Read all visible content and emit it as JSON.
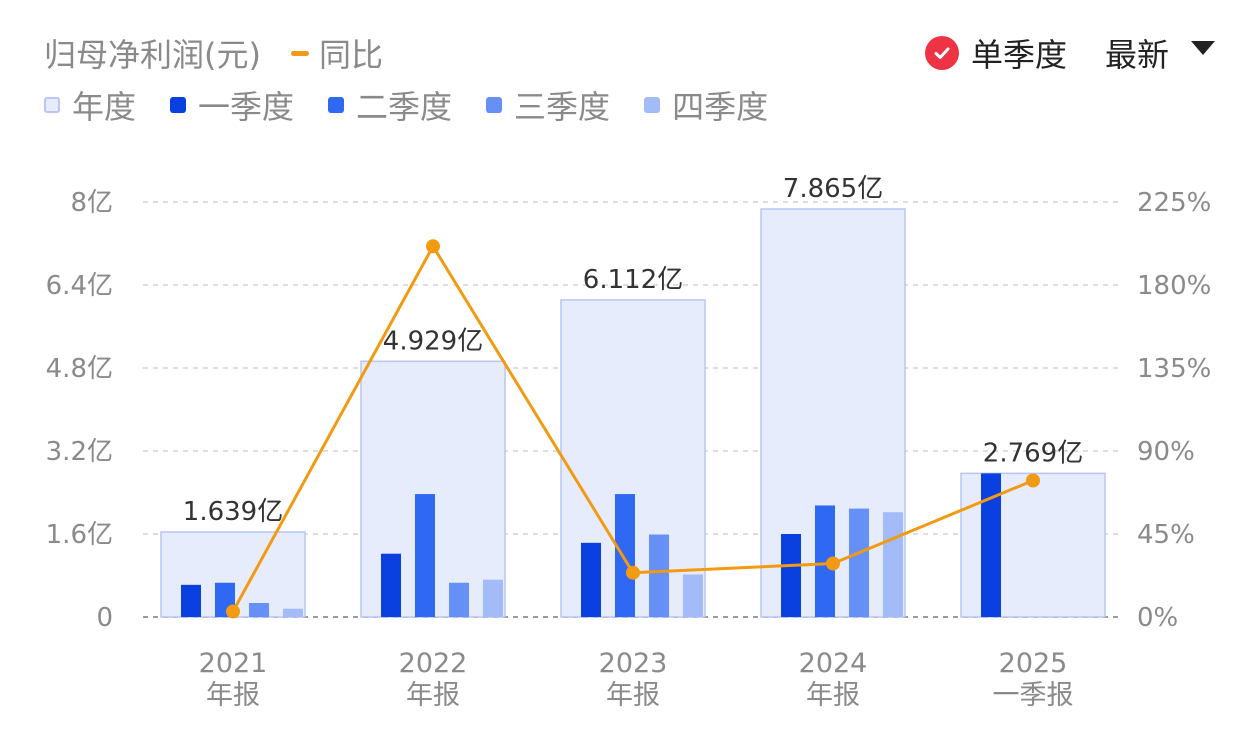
{
  "header": {
    "metric_title": "归母净利润(元)",
    "yoy_label": "同比",
    "toggle_label": "单季度",
    "toggle_checked": true,
    "latest_label": "最新"
  },
  "colors": {
    "annual_fill": "#e6ecfb",
    "annual_stroke": "#b7c6f5",
    "q1": "#0a3fe0",
    "q2": "#2f68f2",
    "q3": "#6690f5",
    "q4": "#a3bbf8",
    "yoy_line": "#f29a12",
    "toggle_red": "#ee3344"
  },
  "chart_data": {
    "type": "bar",
    "categories": [
      {
        "year": "2021",
        "period": "年报"
      },
      {
        "year": "2022",
        "period": "年报"
      },
      {
        "year": "2023",
        "period": "年报"
      },
      {
        "year": "2024",
        "period": "年报"
      },
      {
        "year": "2025",
        "period": "一季报"
      }
    ],
    "series": [
      {
        "name": "年度",
        "key": "annual",
        "values": [
          1.639,
          4.929,
          6.112,
          7.865,
          2.769
        ]
      },
      {
        "name": "一季度",
        "key": "q1",
        "values": [
          0.62,
          1.22,
          1.43,
          1.6,
          2.769
        ]
      },
      {
        "name": "二季度",
        "key": "q2",
        "values": [
          0.66,
          2.37,
          2.37,
          2.15,
          null
        ]
      },
      {
        "name": "三季度",
        "key": "q3",
        "values": [
          0.27,
          0.66,
          1.59,
          2.09,
          null
        ]
      },
      {
        "name": "四季度",
        "key": "q4",
        "values": [
          0.16,
          0.72,
          0.82,
          2.02,
          null
        ]
      }
    ],
    "annual_labels": [
      "1.639亿",
      "4.929亿",
      "6.112亿",
      "7.865亿",
      "2.769亿"
    ],
    "yoy": {
      "name": "同比",
      "unit": "%",
      "values": [
        3,
        201,
        24,
        29,
        74
      ]
    },
    "left_axis": {
      "unit": "亿",
      "min": 0,
      "max": 8,
      "ticks": [
        0,
        1.6,
        3.2,
        4.8,
        6.4,
        8
      ],
      "tick_labels": [
        "0",
        "1.6亿",
        "3.2亿",
        "4.8亿",
        "6.4亿",
        "8亿"
      ]
    },
    "right_axis": {
      "unit": "%",
      "min": 0,
      "max": 225,
      "ticks": [
        0,
        45,
        90,
        135,
        180,
        225
      ],
      "tick_labels": [
        "0%",
        "45%",
        "90%",
        "135%",
        "180%",
        "225%"
      ]
    },
    "grid": true,
    "legend_position": "top-left"
  }
}
